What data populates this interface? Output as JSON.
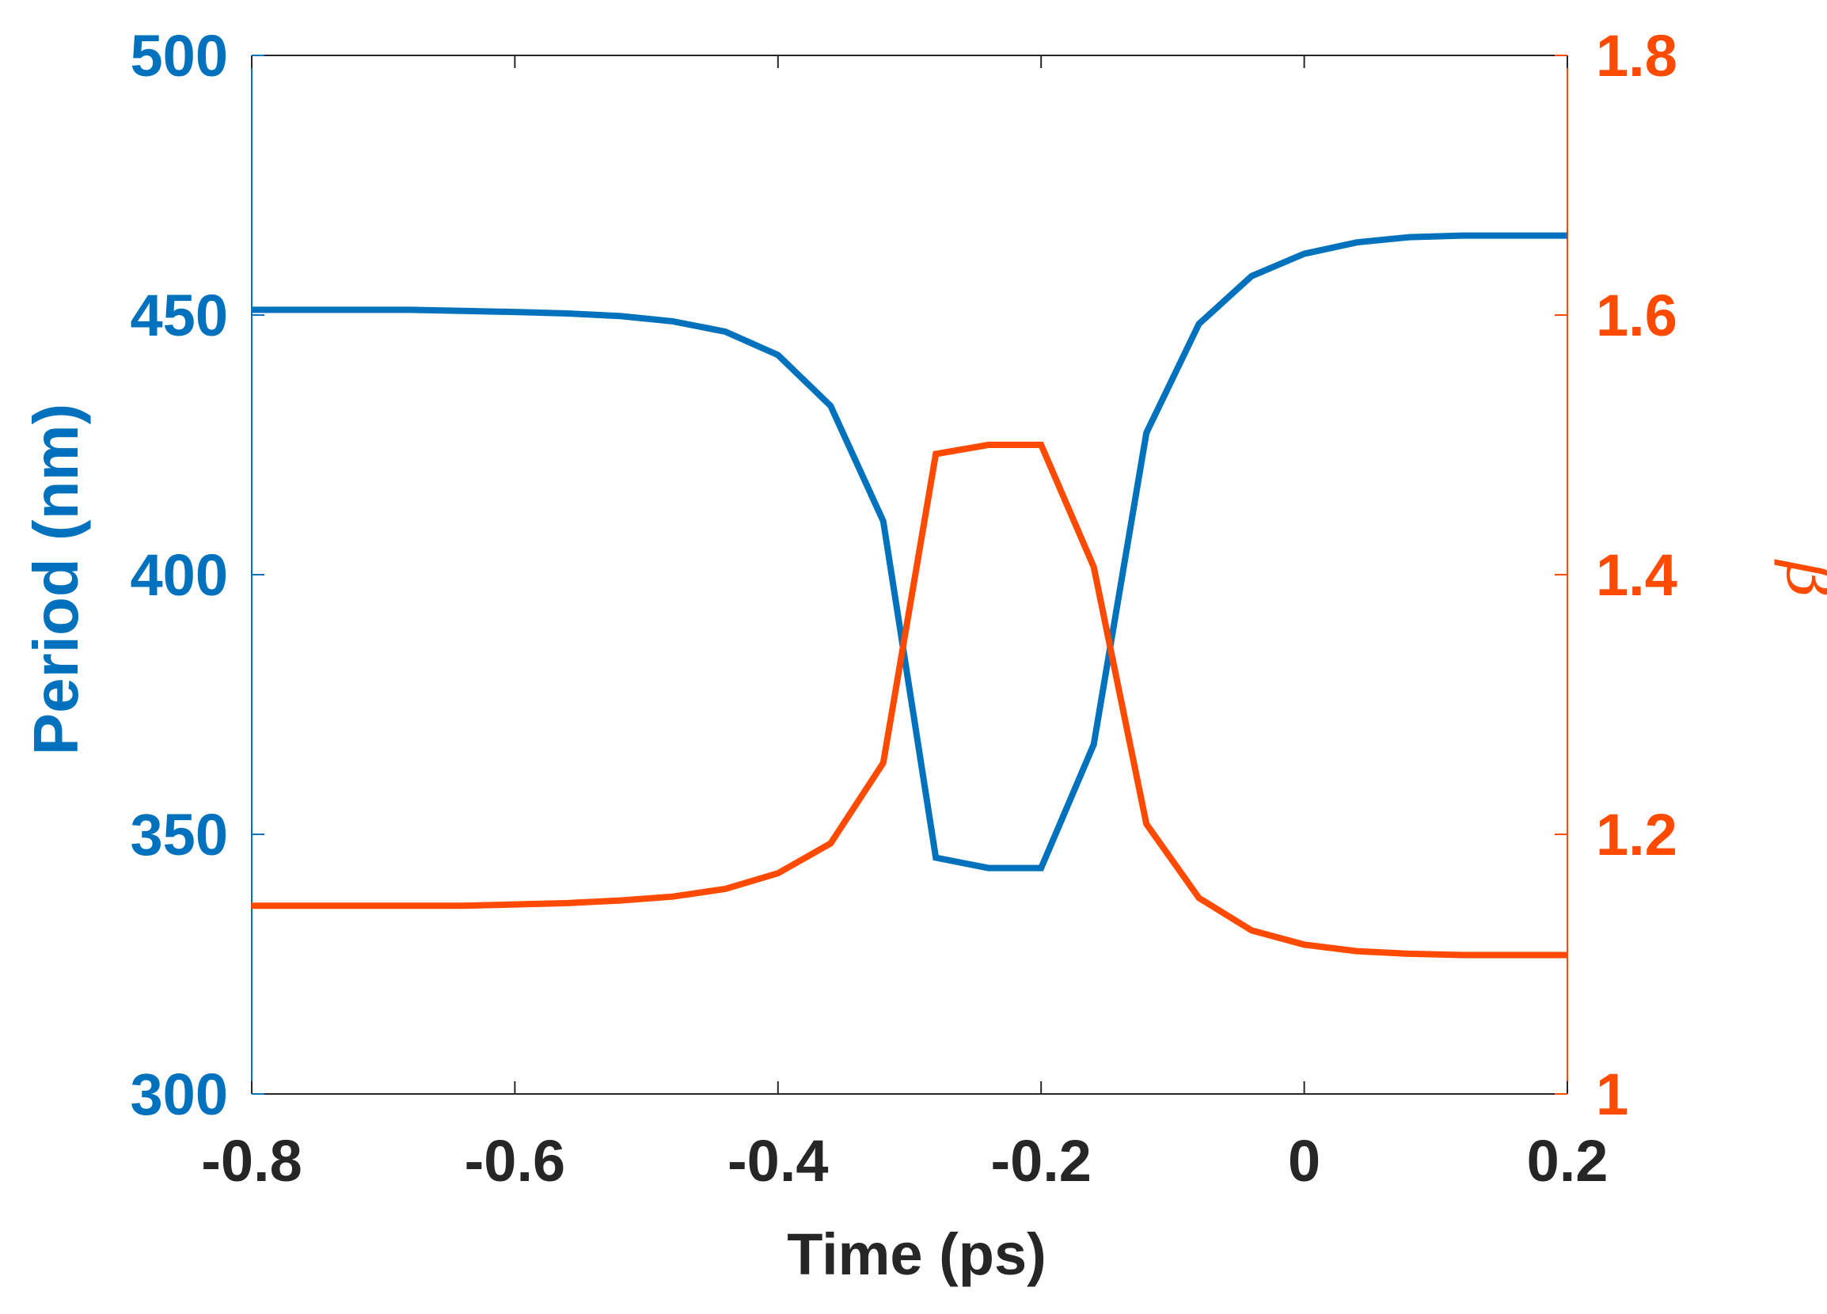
{
  "chart_data": {
    "type": "line",
    "xlabel": "Time (ps)",
    "ylabel_left": "Period (nm)",
    "ylabel_right": "β",
    "xlim": [
      -0.8,
      0.2
    ],
    "ylim_left": [
      300,
      500
    ],
    "ylim_right": [
      1.0,
      1.8
    ],
    "x_ticks": [
      -0.8,
      -0.6,
      -0.4,
      -0.2,
      0,
      0.2
    ],
    "x_tick_labels": [
      "-0.8",
      "-0.6",
      "-0.4",
      "-0.2",
      "0",
      "0.2"
    ],
    "y_left_ticks": [
      300,
      350,
      400,
      450,
      500
    ],
    "y_left_tick_labels": [
      "300",
      "350",
      "400",
      "450",
      "500"
    ],
    "y_right_ticks": [
      1.0,
      1.2,
      1.4,
      1.6,
      1.8
    ],
    "y_right_tick_labels": [
      "1",
      "1.2",
      "1.4",
      "1.6",
      "1.8"
    ],
    "grid": false,
    "legend": "none",
    "colors": {
      "period": "#0072BD",
      "beta": "#FF4A00",
      "axis": "#262626"
    },
    "series": [
      {
        "axis": "left",
        "color": "#0072BD",
        "x": [
          -0.8,
          -0.76,
          -0.72,
          -0.68,
          -0.64,
          -0.6,
          -0.56,
          -0.52,
          -0.48,
          -0.44,
          -0.4,
          -0.36,
          -0.32,
          -0.28,
          -0.24,
          -0.2,
          -0.16,
          -0.12,
          -0.08,
          -0.04,
          0,
          0.04,
          0.08,
          0.12,
          0.16,
          0.2
        ],
        "values": [
          451,
          451,
          451,
          451,
          450.8,
          450.6,
          450.3,
          449.8,
          448.8,
          446.8,
          442.3,
          432.5,
          410.3,
          345.5,
          343.5,
          343.5,
          367.3,
          427.3,
          448.3,
          457.5,
          461.8,
          464,
          465,
          465.3,
          465.3,
          465.3
        ]
      },
      {
        "axis": "right",
        "color": "#FF4A00",
        "x": [
          -0.8,
          -0.76,
          -0.72,
          -0.68,
          -0.64,
          -0.6,
          -0.56,
          -0.52,
          -0.48,
          -0.44,
          -0.4,
          -0.36,
          -0.32,
          -0.28,
          -0.24,
          -0.2,
          -0.16,
          -0.12,
          -0.08,
          -0.04,
          0,
          0.04,
          0.08,
          0.12,
          0.16,
          0.2
        ],
        "values": [
          1.145,
          1.145,
          1.145,
          1.145,
          1.145,
          1.146,
          1.147,
          1.149,
          1.152,
          1.158,
          1.17,
          1.193,
          1.255,
          1.493,
          1.5,
          1.5,
          1.406,
          1.208,
          1.151,
          1.126,
          1.115,
          1.11,
          1.108,
          1.107,
          1.107,
          1.107
        ]
      }
    ]
  }
}
